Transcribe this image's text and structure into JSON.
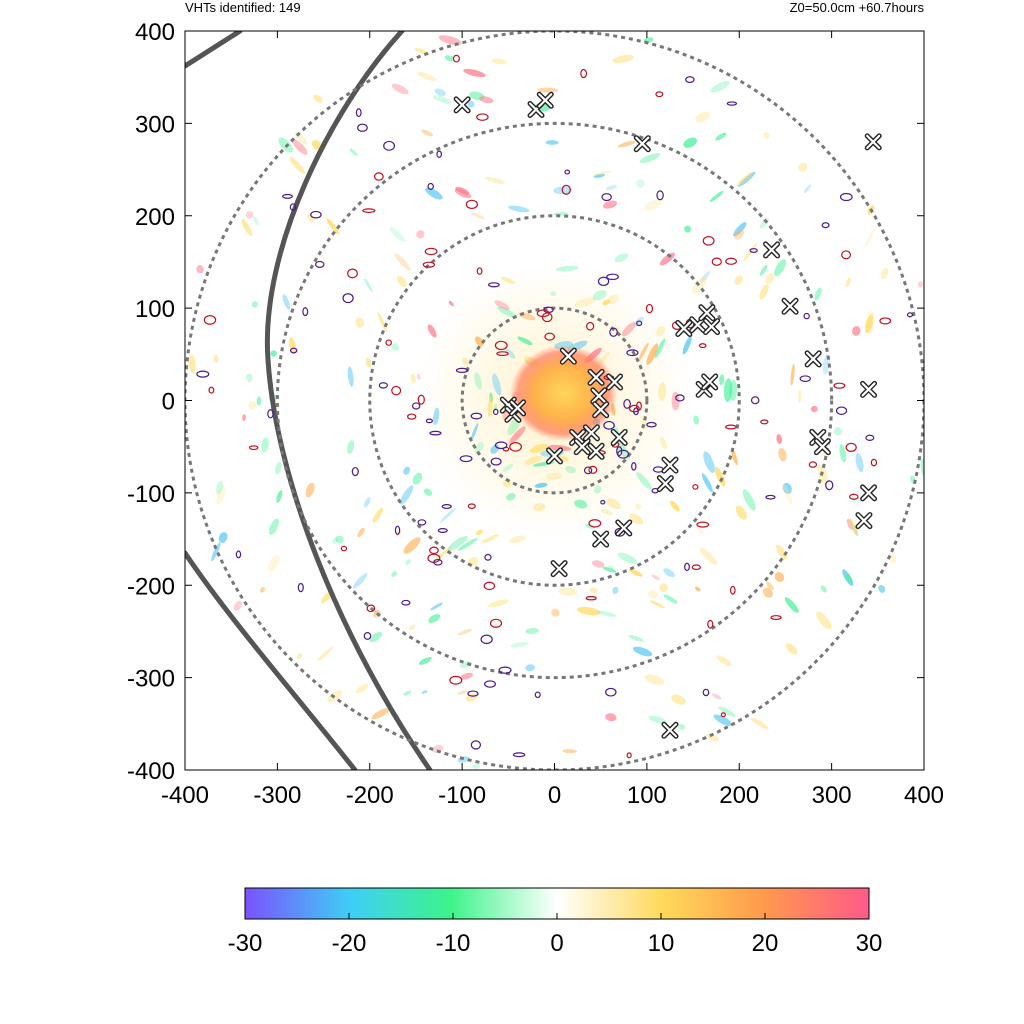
{
  "header": {
    "left": "VHTs identified: 149",
    "right": "Z0=50.0cm  +60.7hours"
  },
  "chart_data": {
    "type": "heatmap",
    "title": "",
    "xlabel": "",
    "ylabel": "",
    "xlim": [
      -400,
      400
    ],
    "ylim": [
      -400,
      400
    ],
    "xticks": [
      "-400",
      "-300",
      "-200",
      "-100",
      "0",
      "100",
      "200",
      "300",
      "400"
    ],
    "yticks": [
      "400",
      "300",
      "200",
      "100",
      "0",
      "-100",
      "-200",
      "-300",
      "-400"
    ],
    "grid": false,
    "reference_rings_radius": [
      100,
      200,
      300,
      400
    ],
    "colorbar": {
      "range": [
        -30,
        30
      ],
      "ticks": [
        "-30",
        "-20",
        "-10",
        "0",
        "10",
        "20",
        "30"
      ],
      "colors": [
        "#7a52ff",
        "#3ecff5",
        "#3df48a",
        "#ffffff",
        "#ffd95a",
        "#ff9a4d",
        "#ff5a88"
      ]
    },
    "vht_markers": [
      [
        -100,
        320
      ],
      [
        -20,
        315
      ],
      [
        -10,
        325
      ],
      [
        95,
        278
      ],
      [
        345,
        280
      ],
      [
        235,
        163
      ],
      [
        255,
        102
      ],
      [
        280,
        45
      ],
      [
        340,
        12
      ],
      [
        140,
        78
      ],
      [
        155,
        82
      ],
      [
        165,
        95
      ],
      [
        170,
        80
      ],
      [
        162,
        12
      ],
      [
        168,
        20
      ],
      [
        15,
        48
      ],
      [
        45,
        25
      ],
      [
        65,
        20
      ],
      [
        48,
        5
      ],
      [
        50,
        -10
      ],
      [
        -50,
        -5
      ],
      [
        -45,
        -15
      ],
      [
        -40,
        -8
      ],
      [
        0,
        -60
      ],
      [
        25,
        -40
      ],
      [
        30,
        -50
      ],
      [
        40,
        -35
      ],
      [
        45,
        -55
      ],
      [
        70,
        -40
      ],
      [
        125,
        -70
      ],
      [
        120,
        -90
      ],
      [
        285,
        -40
      ],
      [
        290,
        -50
      ],
      [
        340,
        -100
      ],
      [
        335,
        -130
      ],
      [
        50,
        -150
      ],
      [
        75,
        -138
      ],
      [
        5,
        -182
      ],
      [
        125,
        -357
      ]
    ]
  }
}
